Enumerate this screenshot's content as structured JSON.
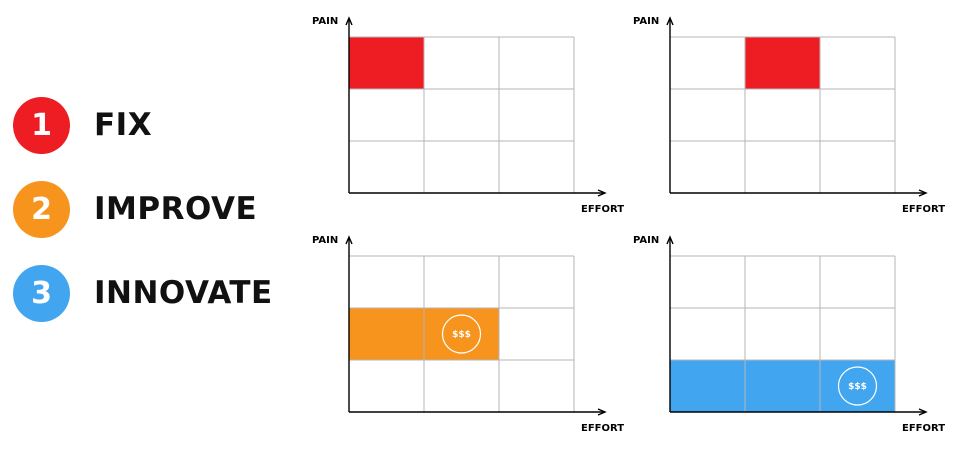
{
  "legend": [
    {
      "number": "1",
      "label": "FIX",
      "color": "#ee1d24"
    },
    {
      "number": "2",
      "label": "IMPROVE",
      "color": "#f7941d"
    },
    {
      "number": "3",
      "label": "INNOVATE",
      "color": "#42a5f0"
    }
  ],
  "axis": {
    "y_label": "PAIN",
    "x_label": "EFFORT"
  },
  "grids": [
    {
      "rows": 3,
      "cols": 3,
      "highlight": {
        "row": 1,
        "col_start": 1,
        "col_end": 1
      },
      "color": "#ee1d24",
      "money": null
    },
    {
      "rows": 3,
      "cols": 3,
      "highlight": {
        "row": 1,
        "col_start": 2,
        "col_end": 2
      },
      "color": "#ee1d24",
      "money": null
    },
    {
      "rows": 3,
      "cols": 3,
      "highlight": {
        "row": 2,
        "col_start": 1,
        "col_end": 2
      },
      "color": "#f7941d",
      "money": {
        "text": "$$$",
        "row": 2,
        "col": 2
      }
    },
    {
      "rows": 3,
      "cols": 3,
      "highlight": {
        "row": 3,
        "col_start": 1,
        "col_end": 3
      },
      "color": "#42a5f0",
      "money": {
        "text": "$$$",
        "row": 3,
        "col": 3
      }
    }
  ]
}
